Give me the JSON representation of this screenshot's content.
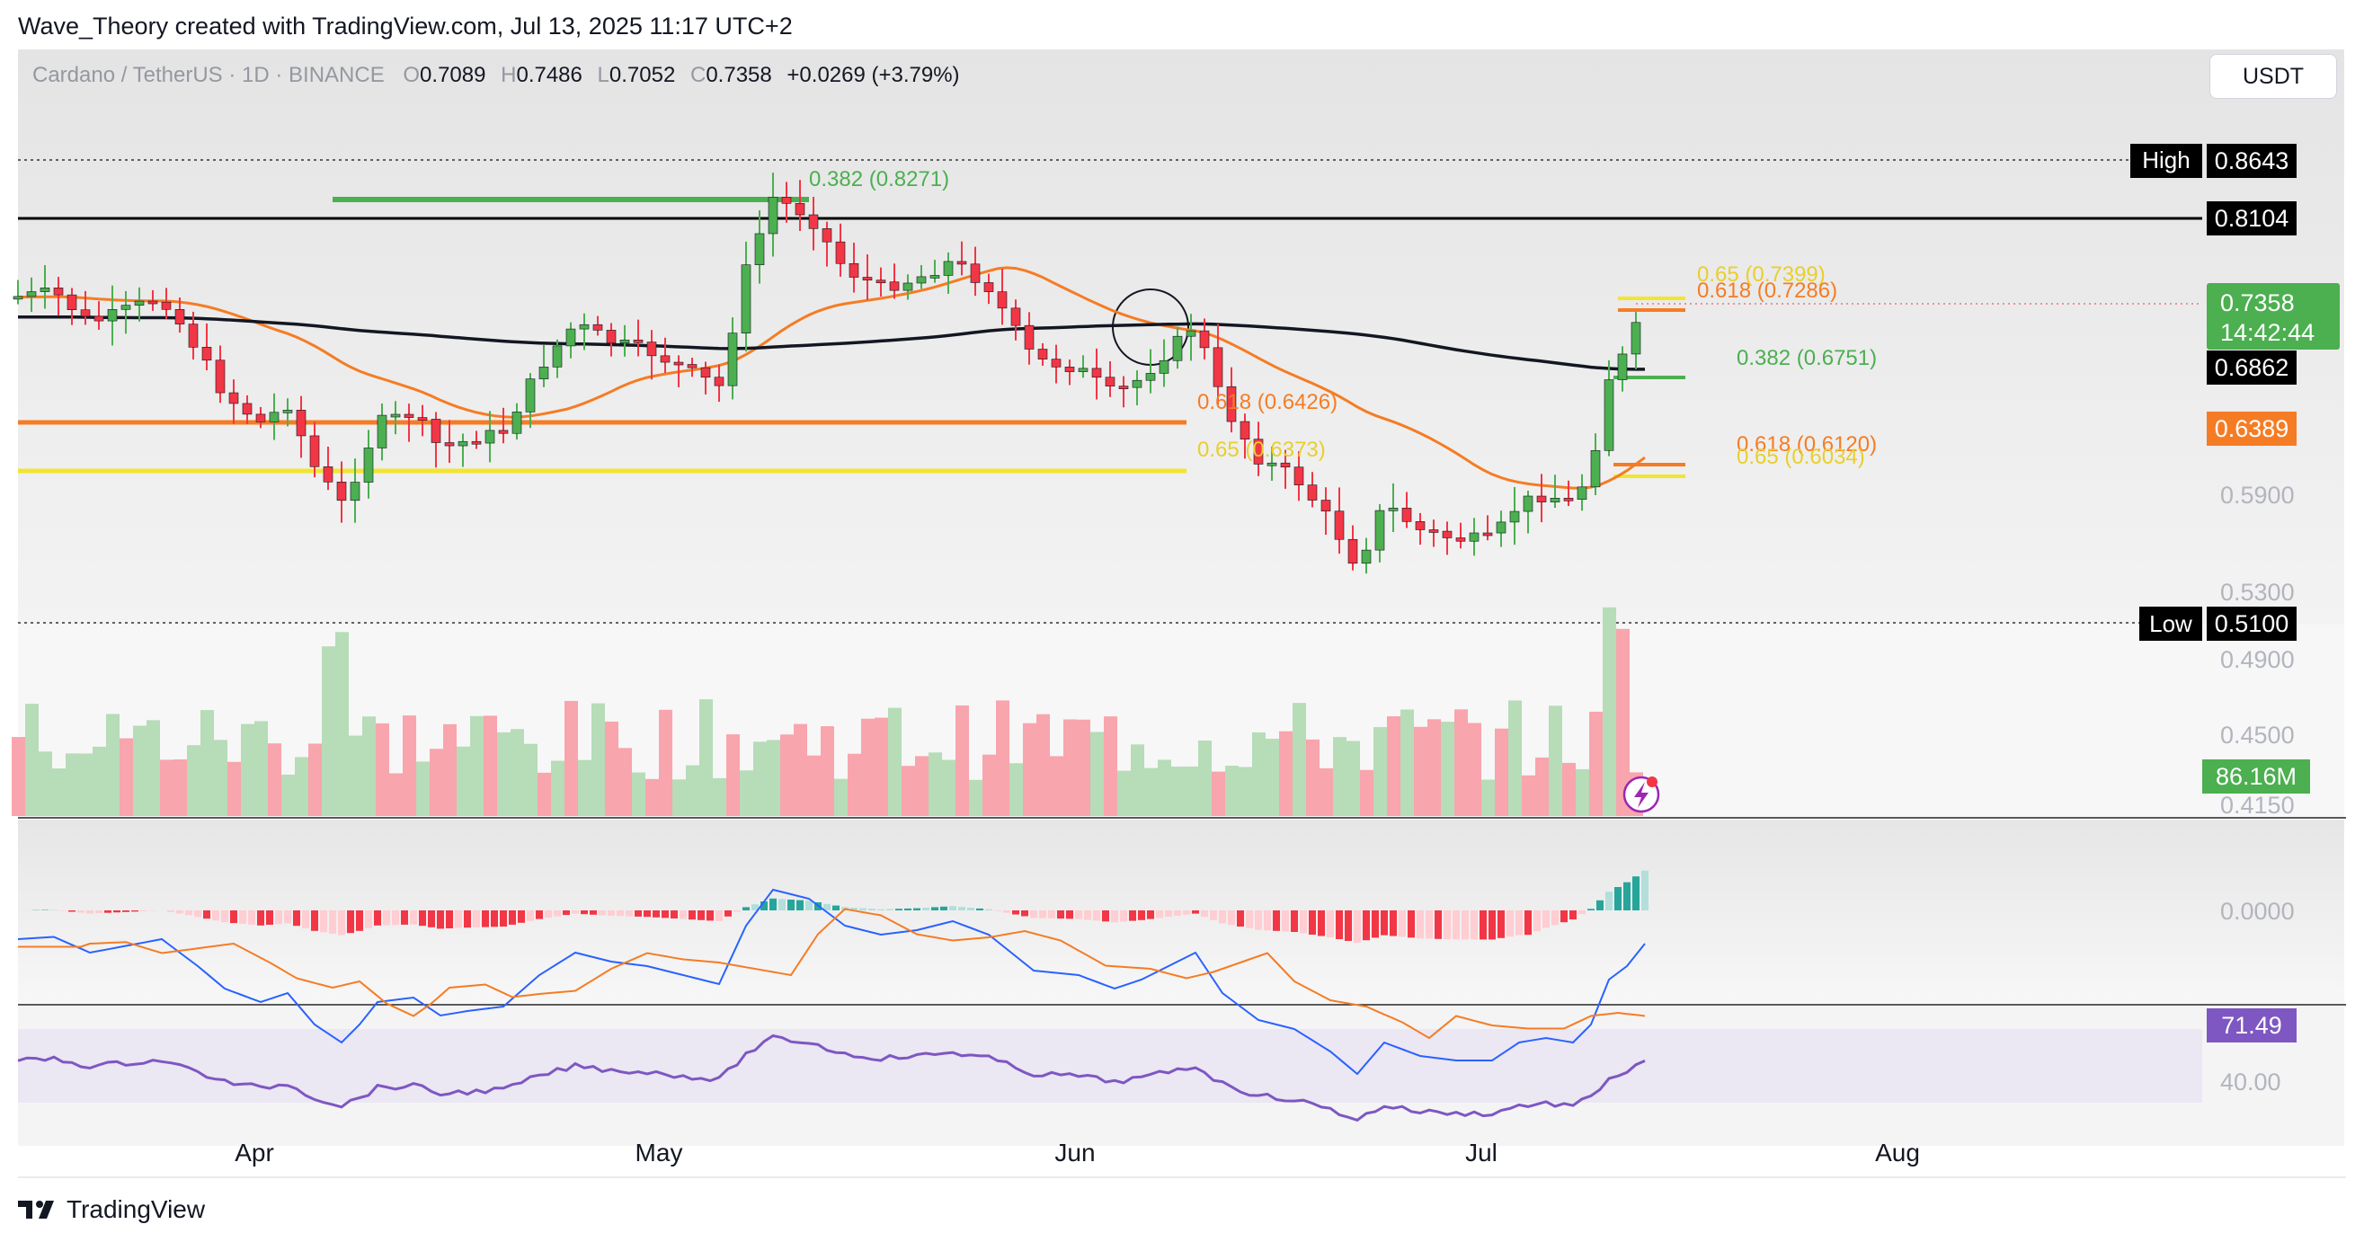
{
  "header": {
    "credit": "Wave_Theory created with TradingView.com, Jul 13, 2025 11:17 UTC+2"
  },
  "brand": {
    "name": "TradingView"
  },
  "currency_button": {
    "label": "USDT"
  },
  "legend": {
    "symbol": "Cardano / TetherUS · 1D · BINANCE",
    "open_label": "O",
    "open": "0.7089",
    "high_label": "H",
    "high": "0.7486",
    "low_label": "L",
    "low": "0.7052",
    "close_label": "C",
    "close": "0.7358",
    "change": "+0.0269 (+3.79%)"
  },
  "chart_data": {
    "type": "candlestick",
    "x_tick_labels": [
      "Apr",
      "May",
      "Jun",
      "Jul",
      "Aug"
    ],
    "price_axis_ticks": [
      "0.5900",
      "0.5300",
      "0.4900",
      "0.4500",
      "0.4150"
    ],
    "series": [
      {
        "name": "ADA/USDT daily candles",
        "approx_range": [
          0.51,
          0.8643
        ]
      },
      {
        "name": "Moving average (orange)",
        "last": 0.6389
      },
      {
        "name": "Moving average (black)",
        "last": 0.6862
      }
    ],
    "price_labels": [
      {
        "label": "High",
        "value": "0.8643",
        "color": "#000000"
      },
      {
        "label": "",
        "value": "0.8104",
        "color": "#000000"
      },
      {
        "label": "",
        "value": "0.7358",
        "sub": "14:42:44",
        "color": "#4caf50"
      },
      {
        "label": "",
        "value": "0.6862",
        "color": "#000000"
      },
      {
        "label": "",
        "value": "0.6389",
        "color": "#f57c24"
      },
      {
        "label": "Low",
        "value": "0.5100",
        "color": "#000000"
      }
    ],
    "fib_annotations": [
      {
        "text": "0.382 (0.8271)",
        "color": "#4caf50"
      },
      {
        "text": "0.618 (0.6426)",
        "color": "#f57c24"
      },
      {
        "text": "0.65 (0.6373)",
        "color": "#f2d22e"
      },
      {
        "text": "0.65 (0.7399)",
        "color": "#f2d22e"
      },
      {
        "text": "0.618 (0.7286)",
        "color": "#f57c24"
      },
      {
        "text": "0.382 (0.6751)",
        "color": "#4caf50"
      },
      {
        "text": "0.618 (0.6120)",
        "color": "#f57c24"
      },
      {
        "text": "0.65 (0.6034)",
        "color": "#f2d22e"
      }
    ],
    "volume": {
      "last_label": "86.16M"
    },
    "macd": {
      "zero_label": "0.0000"
    },
    "rsi": {
      "value": "71.49",
      "level_label": "40.00"
    },
    "colors": {
      "up": "#4caf50",
      "down": "#f23645",
      "ema_fast": "#f57c24",
      "ema_slow": "#131722",
      "macd": "#2962ff",
      "signal": "#f57c24",
      "rsi": "#7e57c2"
    }
  }
}
